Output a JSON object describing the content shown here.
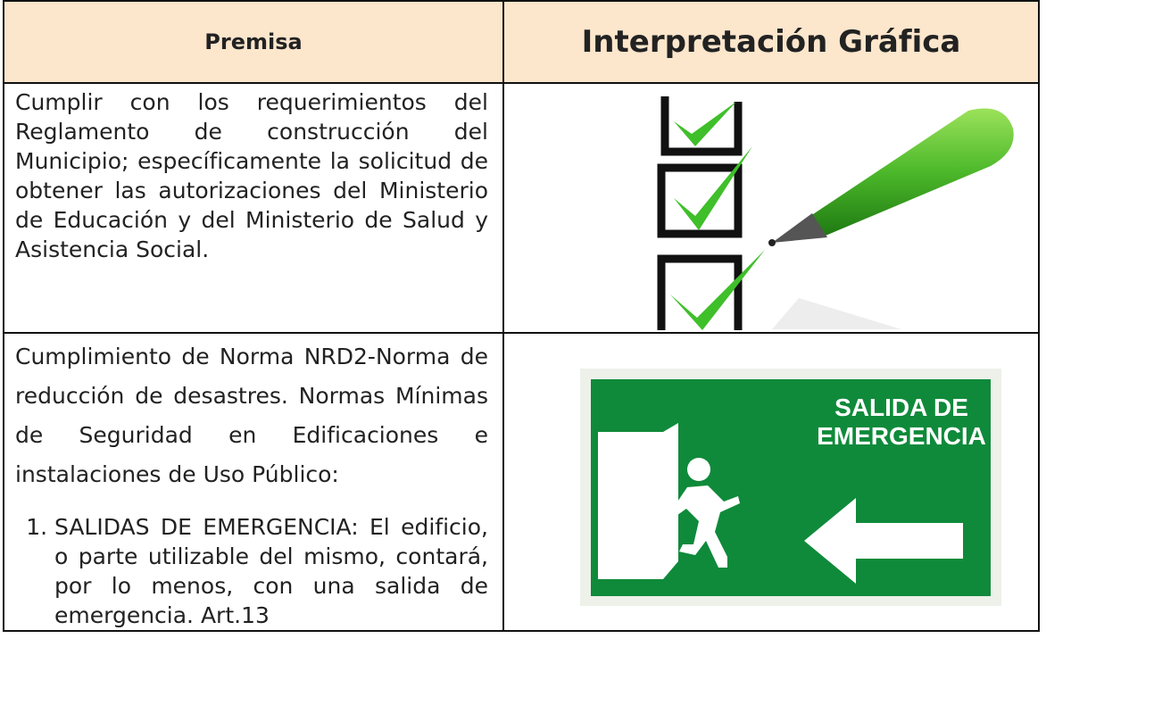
{
  "table": {
    "header": [
      "Premisa",
      "Interpretación Gráfica"
    ],
    "rows": [
      {
        "premise": "Cumplir con los requerimientos del Reglamento de construcción del Municipio; específicamente la solicitud de obtener las autorizaciones del Ministerio de Educación y del Ministerio de Salud y Asistencia Social."
      },
      {
        "premise": "Cumplimiento de Norma NRD2-Norma de reducción de desastres. Normas Mínimas de Seguridad en Edificaciones e instalaciones de Uso Público:",
        "list": [
          "SALIDAS DE EMERGENCIA: El edificio, o parte utilizable del mismo, contará, por lo menos, con una salida de emergencia. Art.13"
        ]
      }
    ]
  },
  "sign": {
    "line1": "SALIDA DE",
    "line2": "EMERGENCIA"
  }
}
